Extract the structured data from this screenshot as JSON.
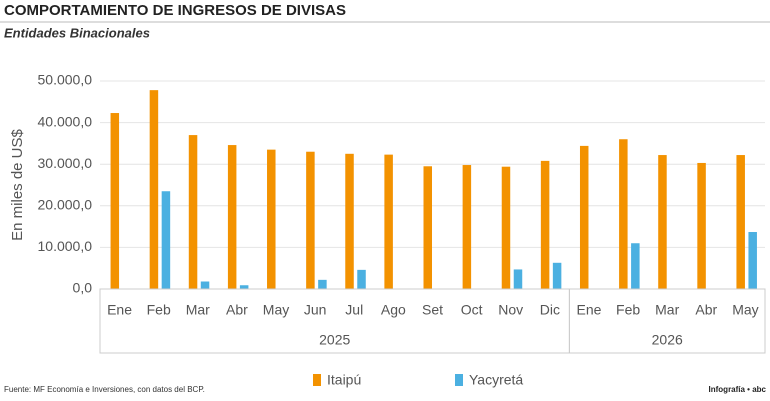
{
  "chart_data": {
    "type": "bar",
    "title": "COMPORTAMIENTO DE INGRESOS DE DIVISAS",
    "subtitle": "Entidades Binacionales",
    "y_label": "En miles de US$",
    "source": "Fuente: MF Economía e Inversiones, con datos del BCP.",
    "credit": "Infografía • abc",
    "categories": [
      "Ene",
      "Feb",
      "Mar",
      "Abr",
      "May",
      "Jun",
      "Jul",
      "Ago",
      "Set",
      "Oct",
      "Nov",
      "Dic",
      "Ene",
      "Feb",
      "Mar",
      "Abr",
      "May"
    ],
    "groups": [
      {
        "name": "2025",
        "count": 12
      },
      {
        "name": "2026",
        "count": 5
      }
    ],
    "series": [
      {
        "name": "Itaipú",
        "color": "#f39200",
        "values": [
          42300,
          47800,
          37000,
          34600,
          33500,
          33000,
          32500,
          32300,
          29500,
          29800,
          29400,
          30800,
          34400,
          36000,
          32200,
          30300,
          32200
        ]
      },
      {
        "name": "Yacyretá",
        "color": "#4bb0e1",
        "values": [
          null,
          23500,
          1800,
          900,
          null,
          2200,
          4600,
          null,
          null,
          null,
          4700,
          6300,
          null,
          11000,
          null,
          null,
          13700
        ]
      }
    ],
    "ylim": [
      0,
      50000
    ],
    "yticks": [
      {
        "value": 0,
        "label": "0,0"
      },
      {
        "value": 10000,
        "label": "10.000,0"
      },
      {
        "value": 20000,
        "label": "20.000,0"
      },
      {
        "value": 30000,
        "label": "30.000,0"
      },
      {
        "value": 40000,
        "label": "40.000,0"
      },
      {
        "value": 50000,
        "label": "50.000,0"
      }
    ],
    "grid": true
  }
}
